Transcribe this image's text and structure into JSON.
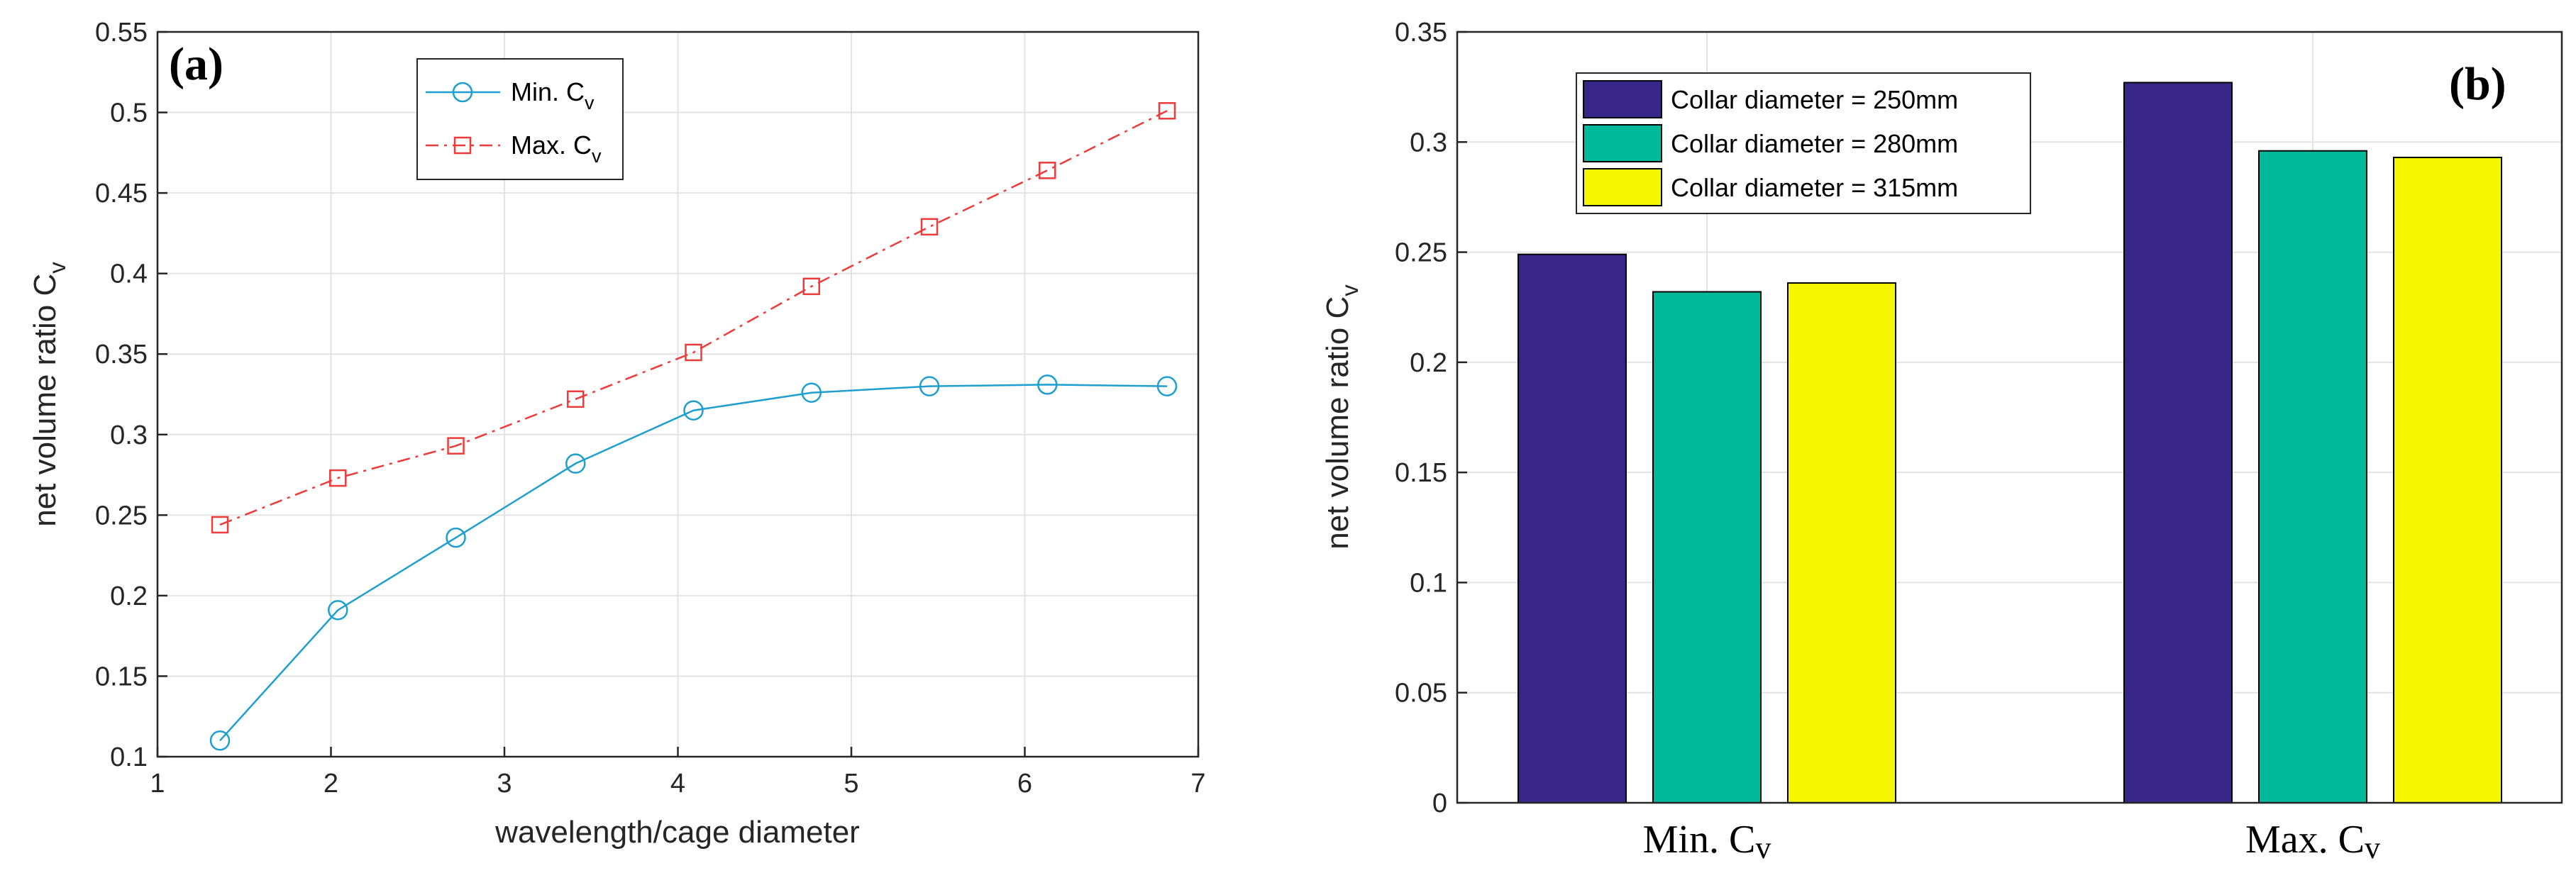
{
  "colors": {
    "min_series": "#1f9fd0",
    "max_series": "#ee3b3b",
    "bar_250": "#372688",
    "bar_280": "#00b89a",
    "bar_315": "#f6f600"
  },
  "panel_a": {
    "label": "(a)",
    "legend": {
      "min_prefix": "Min. C",
      "min_sub": "v",
      "max_prefix": "Max. C",
      "max_sub": "v"
    }
  },
  "panel_b": {
    "label": "(b)",
    "legend_labels": [
      "Collar diameter = 250mm",
      "Collar diameter = 280mm",
      "Collar diameter = 315mm"
    ],
    "categories": [
      {
        "main": "Min. C",
        "sub": "v"
      },
      {
        "main": "Max. C",
        "sub": "v"
      }
    ]
  },
  "chart_data": [
    {
      "type": "line",
      "panel": "(a)",
      "x": [
        1.36,
        2.04,
        2.72,
        3.41,
        4.09,
        4.77,
        5.45,
        6.13,
        6.82
      ],
      "series": [
        {
          "name": "Min. Cv",
          "values": [
            0.11,
            0.191,
            0.236,
            0.282,
            0.315,
            0.326,
            0.33,
            0.331,
            0.33
          ]
        },
        {
          "name": "Max. Cv",
          "values": [
            0.244,
            0.273,
            0.293,
            0.322,
            0.351,
            0.392,
            0.429,
            0.464,
            0.501
          ]
        }
      ],
      "title": "",
      "xlabel": "wavelength/cage diameter",
      "ylabel_main": "net volume ratio C",
      "ylabel_sub": "v",
      "xlim": [
        1,
        7
      ],
      "ylim": [
        0.1,
        0.55
      ],
      "xticks": [
        "1",
        "2",
        "3",
        "4",
        "5",
        "6",
        "7"
      ],
      "yticks": [
        "0.1",
        "0.15",
        "0.2",
        "0.25",
        "0.3",
        "0.35",
        "0.4",
        "0.45",
        "0.5",
        "0.55"
      ],
      "grid": true,
      "legend_position": "top-center"
    },
    {
      "type": "bar",
      "panel": "(b)",
      "categories": [
        "Min. Cv",
        "Max. Cv"
      ],
      "series": [
        {
          "name": "Collar diameter = 250mm",
          "values": [
            0.249,
            0.327
          ]
        },
        {
          "name": "Collar diameter = 280mm",
          "values": [
            0.232,
            0.296
          ]
        },
        {
          "name": "Collar diameter = 315mm",
          "values": [
            0.236,
            0.293
          ]
        }
      ],
      "title": "",
      "xlabel": "",
      "ylabel_main": "net volume ratio C",
      "ylabel_sub": "v",
      "ylim": [
        0,
        0.35
      ],
      "yticks": [
        "0",
        "0.05",
        "0.1",
        "0.15",
        "0.2",
        "0.25",
        "0.3",
        "0.35"
      ],
      "grid": true,
      "legend_position": "top-left"
    }
  ]
}
